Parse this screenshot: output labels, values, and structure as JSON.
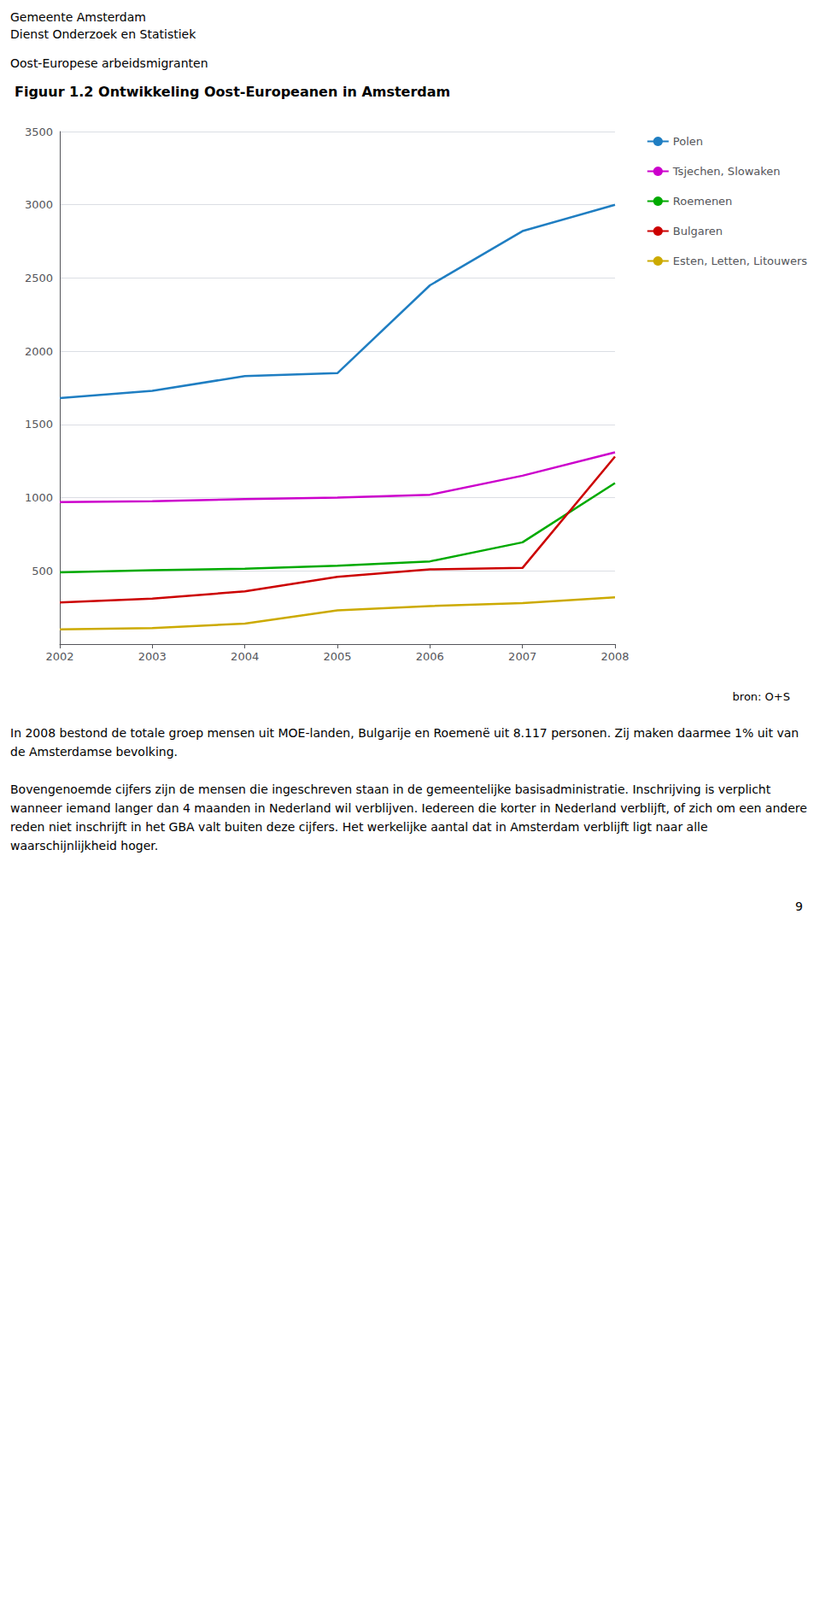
{
  "chart_data": {
    "type": "line",
    "title": "Figuur 1.2 Ontwikkeling Oost-Europeanen in Amsterdam",
    "x": [
      2002,
      2003,
      2004,
      2005,
      2006,
      2007,
      2008
    ],
    "xlim": [
      2002,
      2008
    ],
    "xticks": [
      2002,
      2003,
      2004,
      2005,
      2006,
      2007,
      2008
    ],
    "series": [
      {
        "name": "Polen",
        "color": "#1F7EC2",
        "values": [
          1680,
          1730,
          1830,
          1850,
          2450,
          2820,
          3000
        ]
      },
      {
        "name": "Tsjechen, Slowaken",
        "color": "#CC00CC",
        "values": [
          970,
          975,
          990,
          1000,
          1020,
          1150,
          1310
        ]
      },
      {
        "name": "Roemenen",
        "color": "#00AA00",
        "values": [
          490,
          505,
          515,
          535,
          565,
          695,
          1100
        ]
      },
      {
        "name": "Bulgaren",
        "color": "#CC0000",
        "values": [
          285,
          310,
          360,
          460,
          510,
          520,
          1280
        ]
      },
      {
        "name": "Esten, Letten, Litouwers",
        "color": "#CCAA00",
        "values": [
          100,
          110,
          140,
          230,
          260,
          280,
          320
        ]
      }
    ],
    "ylim": [
      0,
      3500
    ],
    "yticks": [
      500,
      1000,
      1500,
      2000,
      2500,
      3000,
      3500
    ],
    "grid": true,
    "legend": "right",
    "annotations": [
      "Gemeente Amsterdam",
      "Dienst Onderzoek en Statistiek",
      "Oost-Europese arbeidsmigranten",
      "bron: O+S",
      "In 2008 bestond de totale groep mensen uit MOE-landen, Bulgarije en Roemenë uit 8.117 personen. Zij maken daarmee 1% uit van de Amsterdamse bevolking.",
      "Bovengenoemde cijfers zijn de mensen die ingeschreven staan in de gemeentelijke basisadministratie. Inschrijving is verplicht wanneer iemand langer dan 4 maanden in Nederland wil verblijven. Iedereen die korter in Nederland verblijft, of zich om een andere reden niet inschrijft in het GBA valt buiten deze cijfers. Het werkelijke aantal dat in Amsterdam verblijft ligt naar alle waarschijnlijkheid hoger.",
      "9"
    ]
  }
}
